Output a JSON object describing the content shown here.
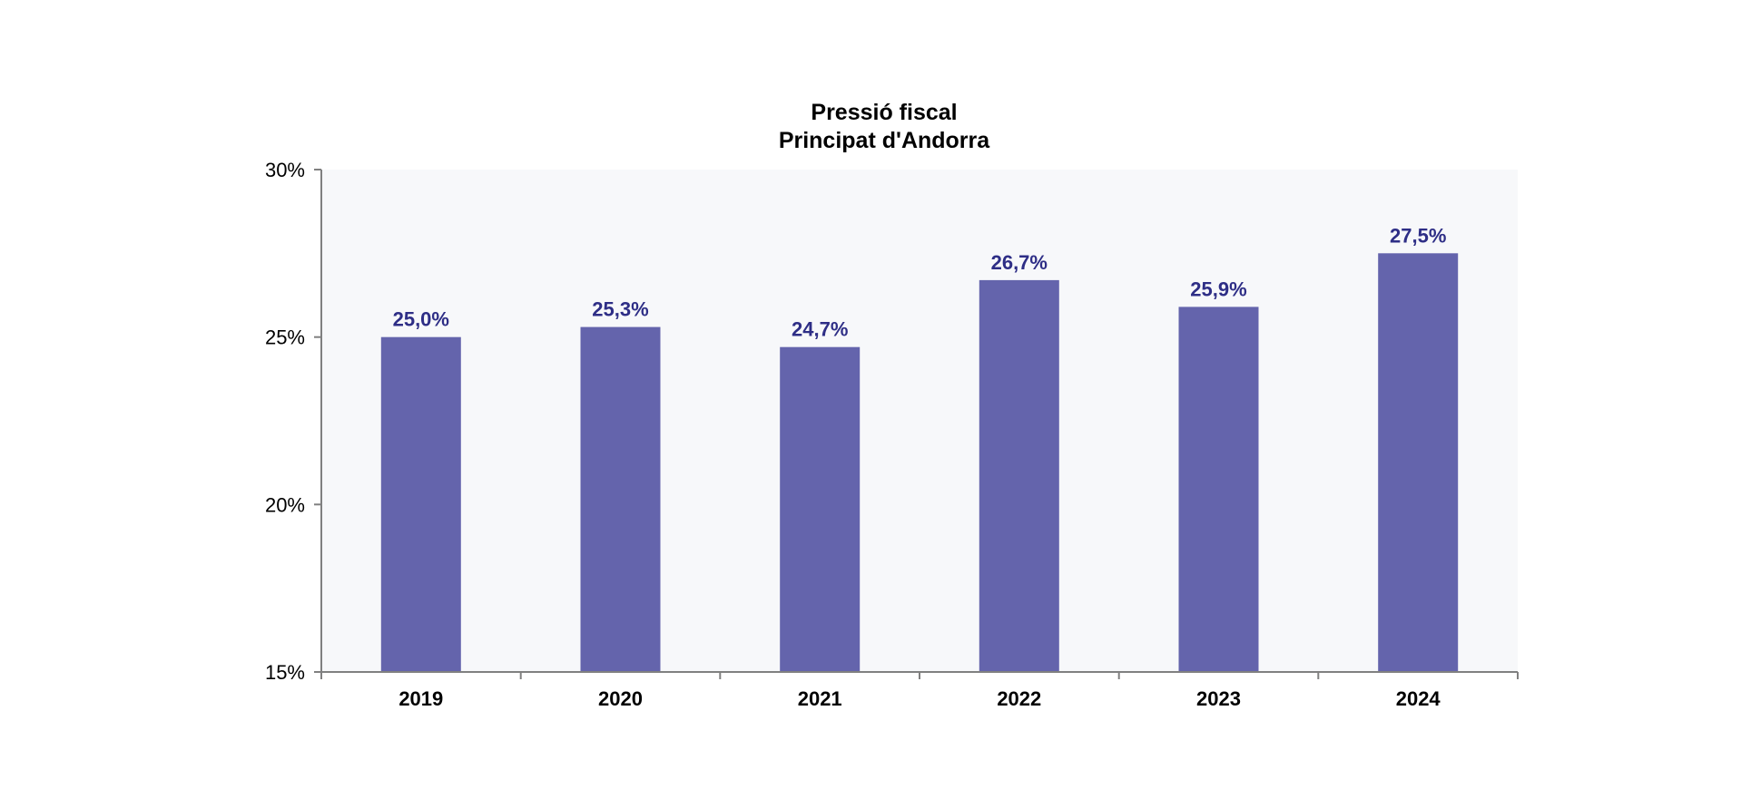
{
  "chart_data": {
    "type": "bar",
    "title": "Pressió fiscal",
    "subtitle": "Principat d'Andorra",
    "categories": [
      "2019",
      "2020",
      "2021",
      "2022",
      "2023",
      "2024"
    ],
    "values": [
      25.0,
      25.3,
      24.7,
      26.7,
      25.9,
      27.5
    ],
    "data_labels": [
      "25,0%",
      "25,3%",
      "24,7%",
      "26,7%",
      "25,9%",
      "27,5%"
    ],
    "ylim": [
      15,
      30
    ],
    "y_ticks": [
      15,
      20,
      25,
      30
    ],
    "y_tick_labels": [
      "15%",
      "20%",
      "25%",
      "30%"
    ],
    "xlabel": "",
    "ylabel": "",
    "grid": false,
    "legend": "none",
    "colors": {
      "bar": "#6464AC",
      "data_label": "#2E2E86",
      "plot_background": "#F7F8FA",
      "axis": "#808080"
    }
  }
}
